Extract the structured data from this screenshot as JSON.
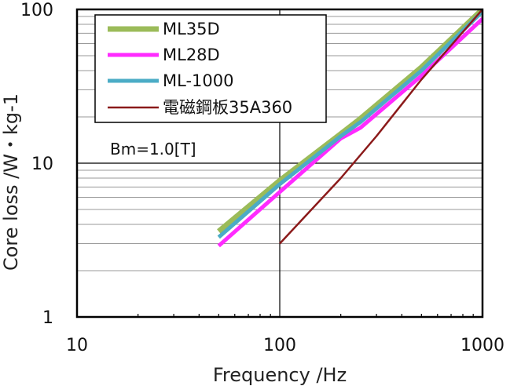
{
  "chart_data": {
    "type": "line",
    "x_scale": "log",
    "y_scale": "log",
    "xlim": [
      10,
      1000
    ],
    "ylim": [
      1,
      100
    ],
    "xlabel": "Frequency /Hz",
    "ylabel": "Core loss /W・kg-1",
    "x_ticks": [
      "10",
      "100",
      "1000"
    ],
    "y_ticks": [
      "1",
      "10",
      "100"
    ],
    "annotation": "Bm=1.0[T]",
    "grid": "horizontal minor lines (gray), major lines at decades (black)",
    "legend_position": "top-left",
    "series": [
      {
        "name": "ML35D",
        "color": "#9bbb59",
        "width": 7,
        "x": [
          50,
          100,
          200,
          250,
          500,
          1000
        ],
        "y": [
          3.6,
          7.7,
          15.5,
          19.5,
          42,
          100
        ]
      },
      {
        "name": "ML28D",
        "color": "#ff2bff",
        "width": 5,
        "x": [
          50,
          100,
          200,
          250,
          500,
          1000
        ],
        "y": [
          2.9,
          6.5,
          14.5,
          17,
          37,
          87
        ]
      },
      {
        "name": "ML-1000",
        "color": "#4bacc6",
        "width": 5,
        "x": [
          50,
          100,
          200,
          250,
          500,
          1000
        ],
        "y": [
          3.3,
          7.3,
          15,
          18.5,
          40,
          97
        ]
      },
      {
        "name": "電磁鋼板35A360",
        "color": "#8b1a1a",
        "width": 2.5,
        "x": [
          100,
          200,
          300,
          500,
          1000
        ],
        "y": [
          3.0,
          8.0,
          15,
          35,
          100
        ]
      }
    ]
  }
}
